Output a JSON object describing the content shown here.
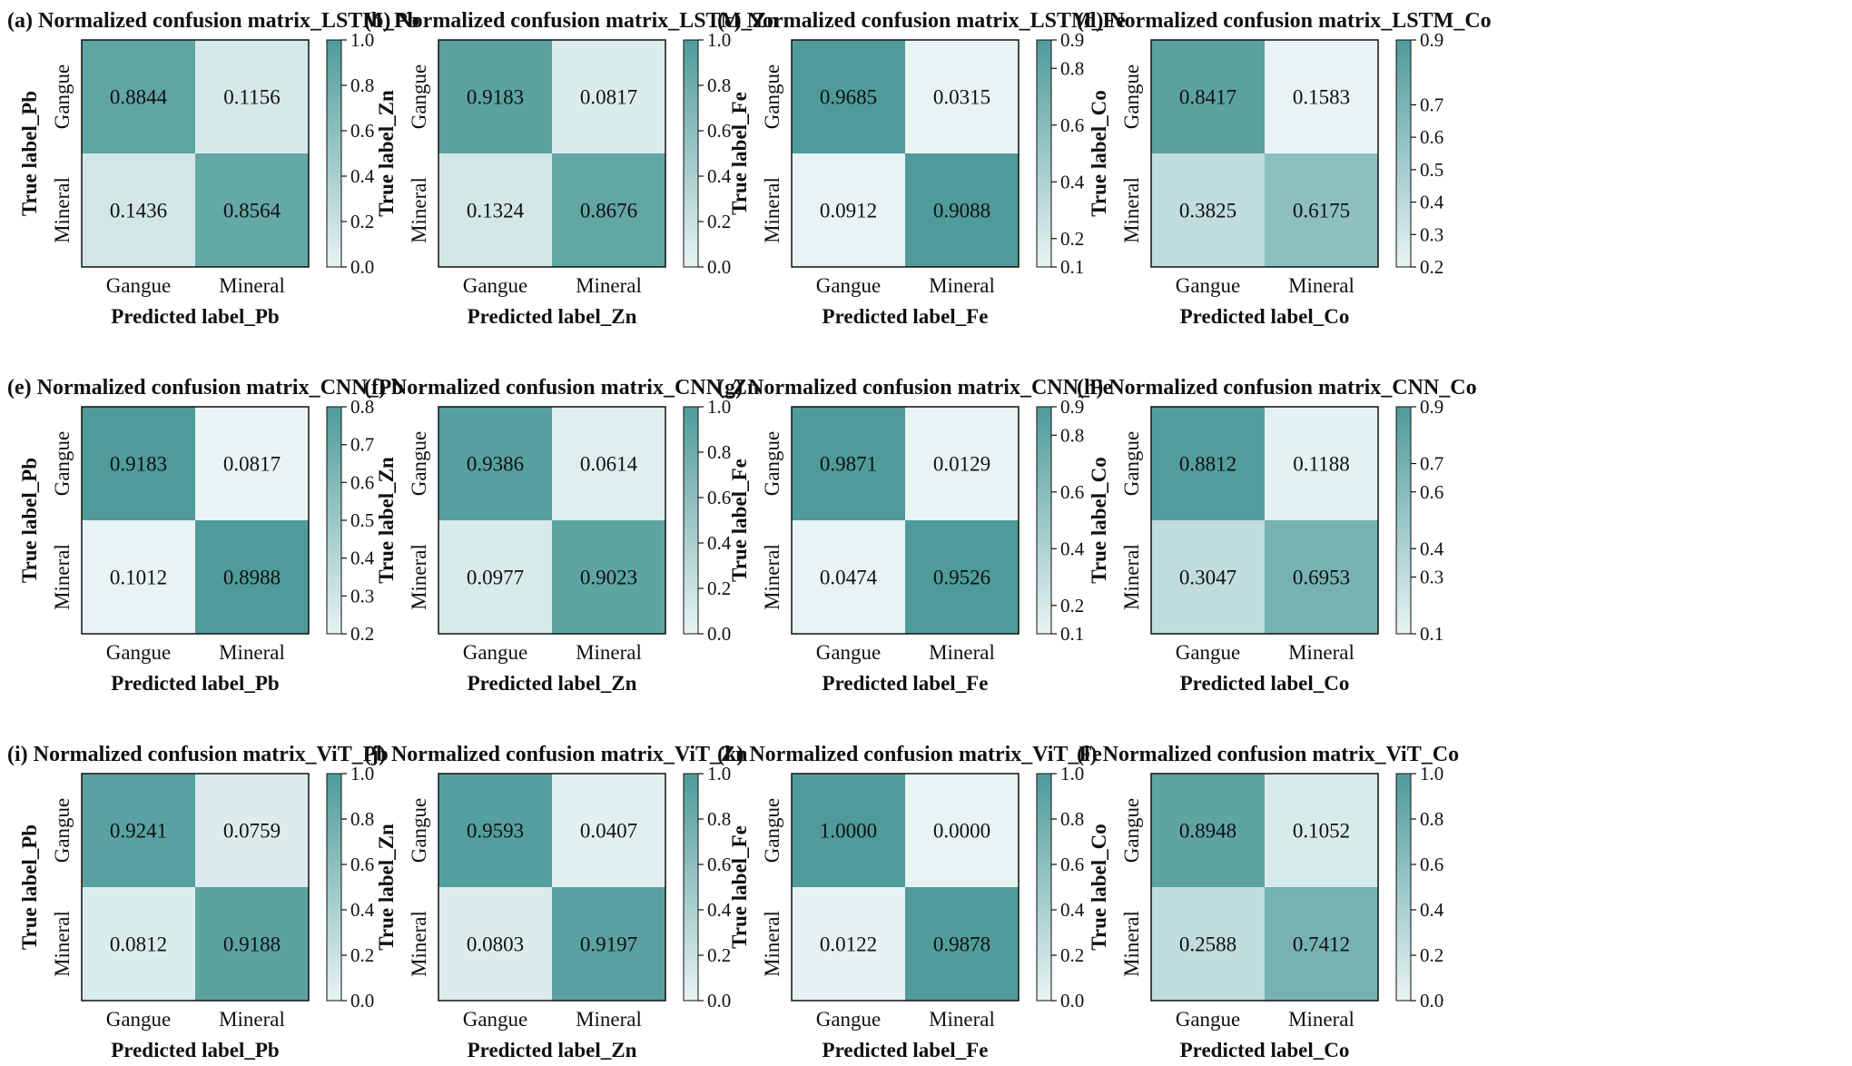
{
  "colors": {
    "low": "#e8f3f3",
    "high": "#4e9b9a",
    "axis": "#111111"
  },
  "chart_data": [
    {
      "type": "heatmap",
      "title": "(a) Normalized confusion matrix_LSTM_Pb",
      "xlabel": "Predicted label_Pb",
      "ylabel": "True label_Pb",
      "x_categories": [
        "Gangue",
        "Mineral"
      ],
      "y_categories": [
        "Gangue",
        "Mineral"
      ],
      "values": [
        [
          "0.8844",
          "0.1156"
        ],
        [
          "0.1436",
          "0.8564"
        ]
      ],
      "colorbar_range": [
        0.0,
        1.0
      ],
      "colorbar_ticks": [
        "0.0",
        "0.2",
        "0.4",
        "0.6",
        "0.8",
        "1.0"
      ]
    },
    {
      "type": "heatmap",
      "title": "(b) Normalized confusion matrix_LSTM_Zn",
      "xlabel": "Predicted label_Zn",
      "ylabel": "True label_Zn",
      "x_categories": [
        "Gangue",
        "Mineral"
      ],
      "y_categories": [
        "Gangue",
        "Mineral"
      ],
      "values": [
        [
          "0.9183",
          "0.0817"
        ],
        [
          "0.1324",
          "0.8676"
        ]
      ],
      "colorbar_range": [
        0.0,
        1.0
      ],
      "colorbar_ticks": [
        "0.0",
        "0.2",
        "0.4",
        "0.6",
        "0.8",
        "1.0"
      ]
    },
    {
      "type": "heatmap",
      "title": "(c) Normalized confusion matrix_LSTM_Fe",
      "xlabel": "Predicted label_Fe",
      "ylabel": "True label_Fe",
      "x_categories": [
        "Gangue",
        "Mineral"
      ],
      "y_categories": [
        "Gangue",
        "Mineral"
      ],
      "values": [
        [
          "0.9685",
          "0.0315"
        ],
        [
          "0.0912",
          "0.9088"
        ]
      ],
      "colorbar_range": [
        0.1,
        0.9
      ],
      "colorbar_ticks": [
        "0.1",
        "0.2",
        "0.4",
        "0.6",
        "0.8",
        "0.9"
      ]
    },
    {
      "type": "heatmap",
      "title": "(d) Normalized confusion matrix_LSTM_Co",
      "xlabel": "Predicted label_Co",
      "ylabel": "True label_Co",
      "x_categories": [
        "Gangue",
        "Mineral"
      ],
      "y_categories": [
        "Gangue",
        "Mineral"
      ],
      "values": [
        [
          "0.8417",
          "0.1583"
        ],
        [
          "0.3825",
          "0.6175"
        ]
      ],
      "colorbar_range": [
        0.2,
        0.9
      ],
      "colorbar_ticks": [
        "0.2",
        "0.3",
        "0.4",
        "0.5",
        "0.6",
        "0.7",
        "0.9"
      ]
    },
    {
      "type": "heatmap",
      "title": "(e) Normalized confusion matrix_CNN_Pb",
      "xlabel": "Predicted label_Pb",
      "ylabel": "True label_Pb",
      "x_categories": [
        "Gangue",
        "Mineral"
      ],
      "y_categories": [
        "Gangue",
        "Mineral"
      ],
      "values": [
        [
          "0.9183",
          "0.0817"
        ],
        [
          "0.1012",
          "0.8988"
        ]
      ],
      "colorbar_range": [
        0.2,
        0.8
      ],
      "colorbar_ticks": [
        "0.2",
        "0.3",
        "0.4",
        "0.5",
        "0.6",
        "0.7",
        "0.8"
      ]
    },
    {
      "type": "heatmap",
      "title": "(f) Normalized confusion matrix_CNN_Zn",
      "xlabel": "Predicted label_Zn",
      "ylabel": "True label_Zn",
      "x_categories": [
        "Gangue",
        "Mineral"
      ],
      "y_categories": [
        "Gangue",
        "Mineral"
      ],
      "values": [
        [
          "0.9386",
          "0.0614"
        ],
        [
          "0.0977",
          "0.9023"
        ]
      ],
      "colorbar_range": [
        0.0,
        1.0
      ],
      "colorbar_ticks": [
        "0.0",
        "0.2",
        "0.4",
        "0.6",
        "0.8",
        "1.0"
      ]
    },
    {
      "type": "heatmap",
      "title": "(g) Normalized confusion matrix_CNN_Fe",
      "xlabel": "Predicted label_Fe",
      "ylabel": "True label_Fe",
      "x_categories": [
        "Gangue",
        "Mineral"
      ],
      "y_categories": [
        "Gangue",
        "Mineral"
      ],
      "values": [
        [
          "0.9871",
          "0.0129"
        ],
        [
          "0.0474",
          "0.9526"
        ]
      ],
      "colorbar_range": [
        0.1,
        0.9
      ],
      "colorbar_ticks": [
        "0.1",
        "0.2",
        "0.4",
        "0.6",
        "0.8",
        "0.9"
      ]
    },
    {
      "type": "heatmap",
      "title": "(h) Normalized confusion matrix_CNN_Co",
      "xlabel": "Predicted label_Co",
      "ylabel": "True label_Co",
      "x_categories": [
        "Gangue",
        "Mineral"
      ],
      "y_categories": [
        "Gangue",
        "Mineral"
      ],
      "values": [
        [
          "0.8812",
          "0.1188"
        ],
        [
          "0.3047",
          "0.6953"
        ]
      ],
      "colorbar_range": [
        0.1,
        0.9
      ],
      "colorbar_ticks": [
        "0.1",
        "0.3",
        "0.4",
        "0.6",
        "0.7",
        "0.9"
      ]
    },
    {
      "type": "heatmap",
      "title": "(i) Normalized confusion matrix_ViT_Pb",
      "xlabel": "Predicted label_Pb",
      "ylabel": "True label_Pb",
      "x_categories": [
        "Gangue",
        "Mineral"
      ],
      "y_categories": [
        "Gangue",
        "Mineral"
      ],
      "values": [
        [
          "0.9241",
          "0.0759"
        ],
        [
          "0.0812",
          "0.9188"
        ]
      ],
      "colorbar_range": [
        0.0,
        1.0
      ],
      "colorbar_ticks": [
        "0.0",
        "0.2",
        "0.4",
        "0.6",
        "0.8",
        "1.0"
      ]
    },
    {
      "type": "heatmap",
      "title": "(j) Normalized confusion matrix_ViT_Zn",
      "xlabel": "Predicted label_Zn",
      "ylabel": "True label_Zn",
      "x_categories": [
        "Gangue",
        "Mineral"
      ],
      "y_categories": [
        "Gangue",
        "Mineral"
      ],
      "values": [
        [
          "0.9593",
          "0.0407"
        ],
        [
          "0.0803",
          "0.9197"
        ]
      ],
      "colorbar_range": [
        0.0,
        1.0
      ],
      "colorbar_ticks": [
        "0.0",
        "0.2",
        "0.4",
        "0.6",
        "0.8",
        "1.0"
      ]
    },
    {
      "type": "heatmap",
      "title": "(k) Normalized confusion matrix_ViT_Fe",
      "xlabel": "Predicted label_Fe",
      "ylabel": "True label_Fe",
      "x_categories": [
        "Gangue",
        "Mineral"
      ],
      "y_categories": [
        "Gangue",
        "Mineral"
      ],
      "values": [
        [
          "1.0000",
          "0.0000"
        ],
        [
          "0.0122",
          "0.9878"
        ]
      ],
      "colorbar_range": [
        0.0,
        1.0
      ],
      "colorbar_ticks": [
        "0.0",
        "0.2",
        "0.4",
        "0.6",
        "0.8",
        "1.0"
      ]
    },
    {
      "type": "heatmap",
      "title": "(l) Normalized confusion matrix_ViT_Co",
      "xlabel": "Predicted label_Co",
      "ylabel": "True label_Co",
      "x_categories": [
        "Gangue",
        "Mineral"
      ],
      "y_categories": [
        "Gangue",
        "Mineral"
      ],
      "values": [
        [
          "0.8948",
          "0.1052"
        ],
        [
          "0.2588",
          "0.7412"
        ]
      ],
      "colorbar_range": [
        0.0,
        1.0
      ],
      "colorbar_ticks": [
        "0.0",
        "0.2",
        "0.4",
        "0.6",
        "0.8",
        "1.0"
      ]
    }
  ]
}
